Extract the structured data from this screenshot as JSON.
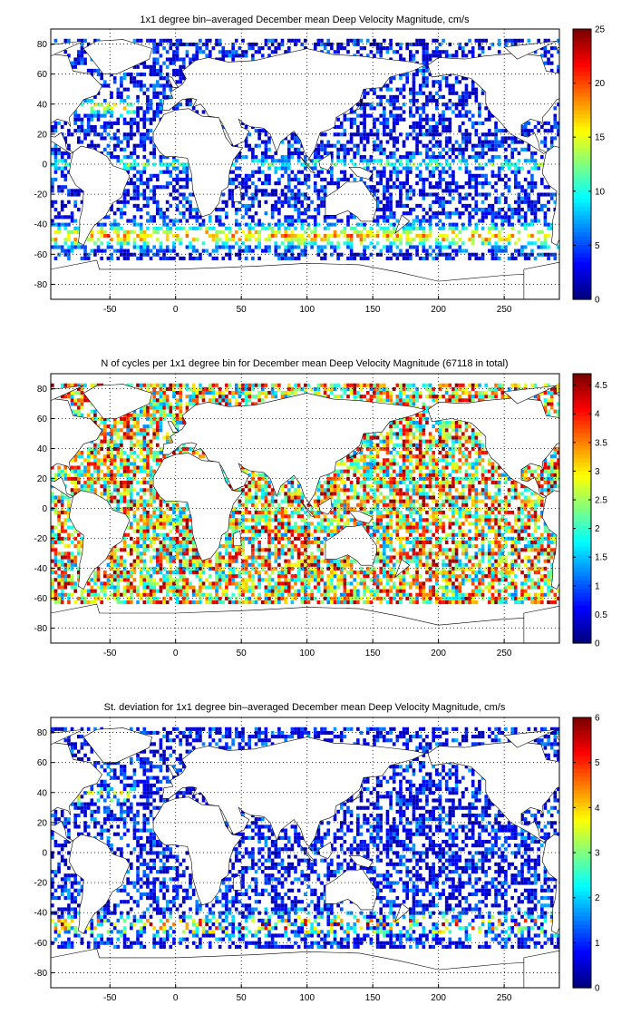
{
  "figure": {
    "background": "#ffffff",
    "panel_background": "#ffffff",
    "grid_color": "#000000",
    "coast_color": "#000000",
    "land_color": "#ffffff",
    "colormap": "jet"
  },
  "chart_data": [
    {
      "type": "heatmap",
      "title": "1x1 degree bin–averaged December mean Deep Velocity Magnitude, cm/s",
      "xlim": [
        -95,
        292
      ],
      "ylim": [
        -90,
        90
      ],
      "xticks": [
        -50,
        0,
        50,
        100,
        150,
        200,
        250
      ],
      "yticks": [
        -80,
        -60,
        -40,
        -20,
        0,
        20,
        40,
        60,
        80
      ],
      "grid": true,
      "colorbar": {
        "min": 0,
        "max": 25,
        "ticks": [
          0,
          5,
          10,
          15,
          20,
          25
        ]
      },
      "value_profile": "speed",
      "fill_probability": 0.5
    },
    {
      "type": "heatmap",
      "title": "N of cycles per 1x1 degree bin for December mean Deep Velocity Magnitude (67118 in total)",
      "xlim": [
        -95,
        292
      ],
      "ylim": [
        -90,
        90
      ],
      "xticks": [
        -50,
        0,
        50,
        100,
        150,
        200,
        250
      ],
      "yticks": [
        -80,
        -60,
        -40,
        -20,
        0,
        20,
        40,
        60,
        80
      ],
      "grid": true,
      "colorbar": {
        "min": 0,
        "max": 4.7,
        "ticks": [
          0,
          0.5,
          1,
          1.5,
          2,
          2.5,
          3,
          3.5,
          4,
          4.5
        ]
      },
      "value_profile": "count",
      "fill_probability": 0.7
    },
    {
      "type": "heatmap",
      "title": "St. deviation for 1x1 degree bin–averaged December mean Deep Velocity Magnitude, cm/s",
      "xlim": [
        -95,
        292
      ],
      "ylim": [
        -90,
        90
      ],
      "xticks": [
        -50,
        0,
        50,
        100,
        150,
        200,
        250
      ],
      "yticks": [
        -80,
        -60,
        -40,
        -20,
        0,
        20,
        40,
        60,
        80
      ],
      "grid": true,
      "colorbar": {
        "min": 0,
        "max": 6,
        "ticks": [
          0,
          1,
          2,
          3,
          4,
          5,
          6
        ]
      },
      "value_profile": "std",
      "fill_probability": 0.5
    }
  ]
}
